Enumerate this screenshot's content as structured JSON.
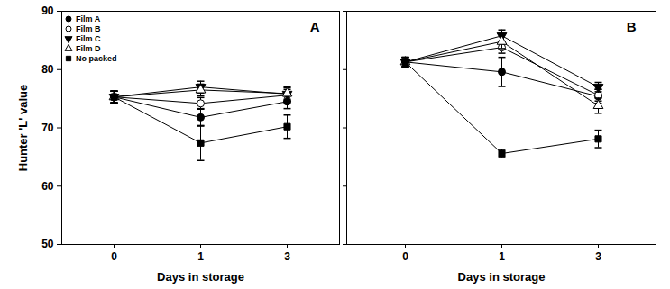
{
  "chart_data": [
    {
      "type": "line",
      "title": "A",
      "x_label": "Days in storage",
      "y_label": "Hunter 'L' value",
      "categories": [
        "0",
        "1",
        "3"
      ],
      "ylim": [
        50,
        90
      ],
      "yticks": [
        50,
        60,
        70,
        80,
        90
      ],
      "legend": "upper left",
      "series": [
        {
          "name": "Film A",
          "color": "#000000",
          "marker": "circle",
          "values": [
            75.3,
            71.8,
            74.5
          ],
          "errors": [
            1.0,
            1.5,
            1.2
          ]
        },
        {
          "name": "Film B",
          "color": "#000000",
          "marker": "open circle",
          "values": [
            75.3,
            74.2,
            75.6
          ],
          "errors": [
            1.0,
            1.0,
            1.0
          ]
        },
        {
          "name": "Film C",
          "color": "#000000",
          "marker": "triangle-down",
          "values": [
            75.3,
            77.0,
            75.8
          ],
          "errors": [
            1.0,
            1.0,
            1.2
          ]
        },
        {
          "name": "Film D",
          "color": "#000000",
          "marker": "open triangle",
          "values": [
            75.3,
            76.5,
            75.9
          ],
          "errors": [
            1.0,
            1.0,
            1.0
          ]
        },
        {
          "name": "No packed",
          "color": "#000000",
          "marker": "square",
          "values": [
            75.3,
            67.4,
            70.2
          ],
          "errors": [
            1.0,
            3.0,
            2.0
          ]
        }
      ]
    },
    {
      "type": "line",
      "title": "B",
      "x_label": "Days in storage",
      "categories": [
        "0",
        "1",
        "3"
      ],
      "ylim": [
        50,
        90
      ],
      "yticks": [
        50,
        60,
        70,
        80,
        90
      ],
      "tick_labels": "x",
      "series": [
        {
          "name": "Film A",
          "color": "#000000",
          "marker": "circle",
          "values": [
            81.3,
            79.6,
            75.4
          ],
          "errors": [
            0.8,
            2.5,
            1.2
          ]
        },
        {
          "name": "Film B",
          "color": "#000000",
          "marker": "open circle",
          "values": [
            81.3,
            83.8,
            75.6
          ],
          "errors": [
            0.8,
            1.0,
            1.0
          ]
        },
        {
          "name": "Film C",
          "color": "#000000",
          "marker": "triangle-down",
          "values": [
            81.3,
            85.8,
            77.0
          ],
          "errors": [
            0.8,
            1.0,
            0.8
          ]
        },
        {
          "name": "Film D",
          "color": "#000000",
          "marker": "open triangle",
          "values": [
            81.3,
            84.8,
            73.8
          ],
          "errors": [
            0.8,
            1.2,
            1.3
          ]
        },
        {
          "name": "No packed",
          "color": "#000000",
          "marker": "square",
          "values": [
            81.3,
            65.6,
            68.1
          ],
          "errors": [
            0.8,
            0.7,
            1.5
          ]
        }
      ]
    }
  ]
}
